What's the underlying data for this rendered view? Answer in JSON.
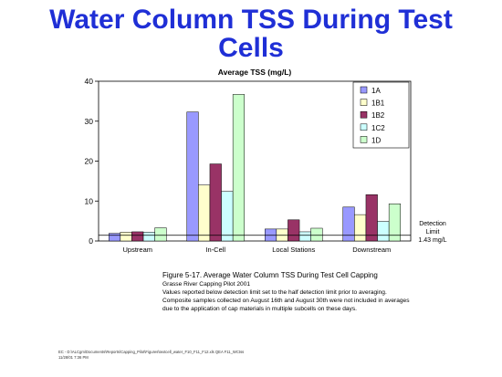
{
  "slide": {
    "title_line1": "Water Column TSS During Test",
    "title_line2": "Cells"
  },
  "chart_data": {
    "type": "bar",
    "title": "Average TSS (mg/L)",
    "categories": [
      "Upstream",
      "In-Cell",
      "Local Stations",
      "Downstream"
    ],
    "series": [
      {
        "name": "1A",
        "color": "#9999ff",
        "values": [
          1.9,
          32.3,
          3.0,
          8.5
        ]
      },
      {
        "name": "1B1",
        "color": "#ffffcc",
        "values": [
          2.2,
          14.0,
          3.0,
          6.6
        ]
      },
      {
        "name": "1B2",
        "color": "#993366",
        "values": [
          2.3,
          19.3,
          5.3,
          11.6
        ]
      },
      {
        "name": "1C2",
        "color": "#ccffff",
        "values": [
          2.2,
          12.4,
          2.3,
          4.9
        ]
      },
      {
        "name": "1D",
        "color": "#ccffcc",
        "values": [
          3.3,
          36.7,
          3.2,
          9.3
        ]
      }
    ],
    "ylim": [
      0,
      40
    ],
    "yticks": [
      0,
      10,
      20,
      30,
      40
    ],
    "detection_limit": 1.43,
    "detection_label": [
      "Detection",
      "Limit",
      "1.43 mg/L"
    ],
    "legend_position": "top-right",
    "grid": false
  },
  "caption": {
    "figure": "Figure 5-17.  Average Water Column TSS During Test Cell Capping",
    "subtitle": "Grasse River Capping Pilot 2001",
    "notes": [
      "Values reported below detection limit set to the half detection limit prior to averaging.",
      "Composite samples collected on August 16th and August 30th were not included in averages",
      "due to the application of cap materials in multiple subcells on these days."
    ]
  },
  "footer": {
    "path": "EC - D:\\ALCgm\\Documents\\Reports\\Capping_Pilot\\Figures\\textcell_water_F10_F11_F12.xls  QEA F11_WCtss",
    "date": "11/28/01  7:36 PM"
  }
}
